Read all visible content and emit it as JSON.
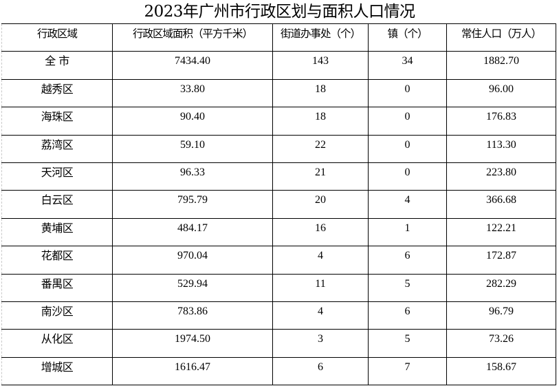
{
  "title": "2023年广州市行政区划与面积人口情况",
  "headers": [
    "行政区域",
    "行政区域面积（平方千米）",
    "街道办事处（个）",
    "镇（个）",
    "常住人口（万人）"
  ],
  "rows": [
    [
      "全 市",
      "7434.40",
      "143",
      "34",
      "1882.70"
    ],
    [
      "越秀区",
      "33.80",
      "18",
      "0",
      "96.00"
    ],
    [
      "海珠区",
      "90.40",
      "18",
      "0",
      "176.83"
    ],
    [
      "荔湾区",
      "59.10",
      "22",
      "0",
      "113.30"
    ],
    [
      "天河区",
      "96.33",
      "21",
      "0",
      "223.80"
    ],
    [
      "白云区",
      "795.79",
      "20",
      "4",
      "366.68"
    ],
    [
      "黄埔区",
      "484.17",
      "16",
      "1",
      "122.21"
    ],
    [
      "花都区",
      "970.04",
      "4",
      "6",
      "172.87"
    ],
    [
      "番禺区",
      "529.94",
      "11",
      "5",
      "282.29"
    ],
    [
      "南沙区",
      "783.86",
      "4",
      "6",
      "96.79"
    ],
    [
      "从化区",
      "1974.50",
      "3",
      "5",
      "73.26"
    ],
    [
      "增城区",
      "1616.47",
      "6",
      "7",
      "158.67"
    ]
  ]
}
